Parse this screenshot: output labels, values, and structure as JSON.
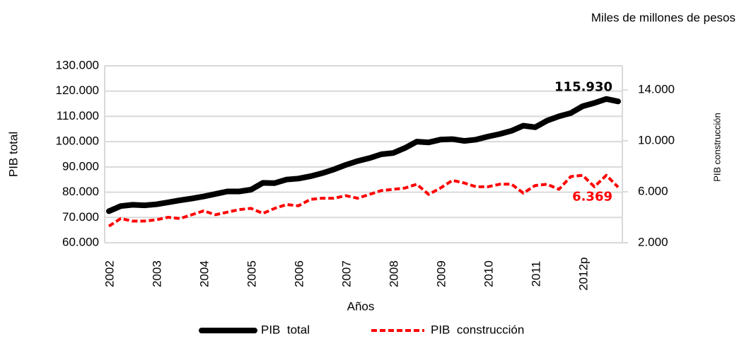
{
  "chart_data": {
    "type": "line",
    "subtitle": "Miles de millones de pesos",
    "x_label": "Años",
    "y_label": "PIB total",
    "y2_label": "PIB construcción",
    "categories": [
      "2002",
      null,
      null,
      null,
      "2003",
      null,
      null,
      null,
      "2004",
      null,
      null,
      null,
      "2005",
      null,
      null,
      null,
      "2006",
      null,
      null,
      null,
      "2007",
      null,
      null,
      null,
      "2008",
      null,
      null,
      null,
      "2009",
      null,
      null,
      null,
      "2010",
      null,
      null,
      null,
      "2011",
      null,
      null,
      null,
      "2012p",
      null,
      null,
      null
    ],
    "ylim": [
      60000,
      130000
    ],
    "yticks": [
      {
        "value": 60000,
        "label": "60.000"
      },
      {
        "value": 70000,
        "label": "70.000"
      },
      {
        "value": 80000,
        "label": "80.000"
      },
      {
        "value": 90000,
        "label": "90.000"
      },
      {
        "value": 100000,
        "label": "100.000"
      },
      {
        "value": 110000,
        "label": "110.000"
      },
      {
        "value": 120000,
        "label": "120.000"
      },
      {
        "value": 130000,
        "label": "130.000"
      }
    ],
    "y2lim": [
      2000,
      15900
    ],
    "y2ticks": [
      {
        "value": 2000,
        "label": "2.000"
      },
      {
        "value": 6000,
        "label": "6.000"
      },
      {
        "value": 10000,
        "label": "10.000"
      },
      {
        "value": 14000,
        "label": "14.000"
      }
    ],
    "grid": true,
    "legend": "bottom",
    "series": [
      {
        "name": "PIB  total",
        "color": "#000000",
        "values": [
          72500,
          74500,
          75000,
          74800,
          75200,
          76000,
          76800,
          77500,
          78300,
          79300,
          80300,
          80300,
          81000,
          83700,
          83600,
          85000,
          85400,
          86300,
          87500,
          89000,
          90800,
          92300,
          93500,
          95000,
          95500,
          97500,
          100000,
          99700,
          100800,
          101000,
          100300,
          100800,
          102000,
          103000,
          104300,
          106300,
          105700,
          108300,
          110000,
          111300,
          114000,
          115300,
          116900,
          115930
        ],
        "value_labels": [
          null,
          null,
          null,
          null,
          null,
          null,
          null,
          null,
          null,
          null,
          null,
          null,
          null,
          null,
          null,
          null,
          null,
          null,
          null,
          null,
          null,
          null,
          null,
          null,
          null,
          null,
          null,
          null,
          null,
          null,
          null,
          null,
          null,
          null,
          null,
          null,
          null,
          null,
          null,
          null,
          null,
          null,
          null,
          "115.930"
        ]
      },
      {
        "name": "PIB  construcción",
        "color": "#ff0000",
        "axis": "y2",
        "dashed": true,
        "values": [
          3300,
          3900,
          3700,
          3700,
          3800,
          4000,
          3900,
          4200,
          4500,
          4200,
          4400,
          4600,
          4700,
          4300,
          4700,
          5000,
          4900,
          5400,
          5500,
          5500,
          5700,
          5500,
          5800,
          6100,
          6200,
          6300,
          6600,
          5800,
          6300,
          6900,
          6700,
          6400,
          6400,
          6600,
          6600,
          5900,
          6500,
          6600,
          6200,
          7200,
          7300,
          6400,
          7300,
          6369
        ],
        "value_labels": [
          null,
          null,
          null,
          null,
          null,
          null,
          null,
          null,
          null,
          null,
          null,
          null,
          null,
          null,
          null,
          null,
          null,
          null,
          null,
          null,
          null,
          null,
          null,
          null,
          null,
          null,
          null,
          null,
          null,
          null,
          null,
          null,
          null,
          null,
          null,
          null,
          null,
          null,
          null,
          null,
          null,
          null,
          null,
          "6.369"
        ]
      }
    ]
  }
}
